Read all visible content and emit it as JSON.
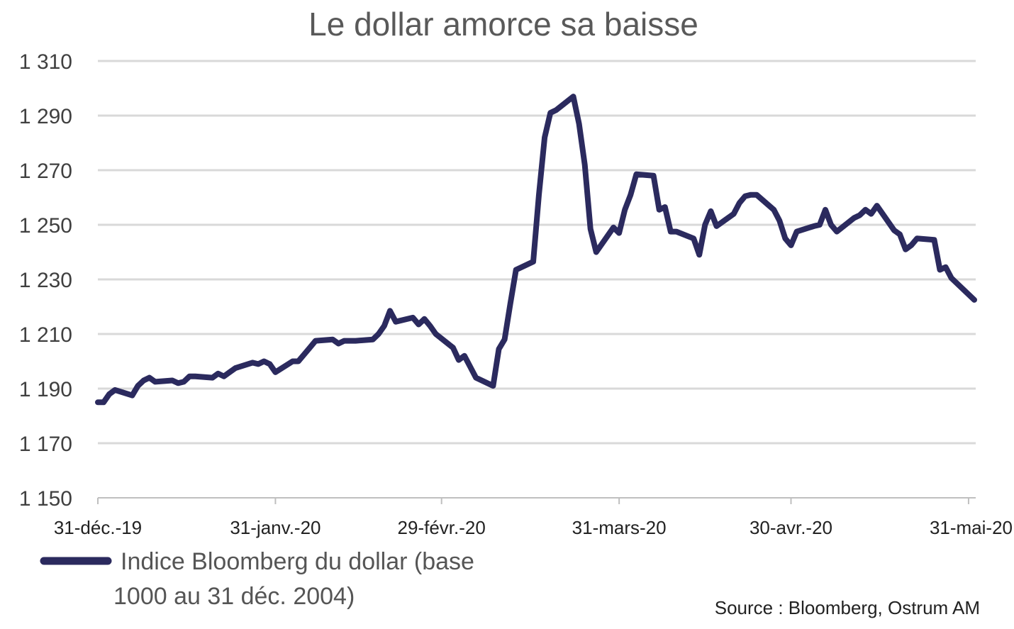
{
  "chart_data": {
    "type": "line",
    "title": "Le dollar amorce sa baisse",
    "xlabel": "",
    "ylabel": "",
    "ylim": [
      1150,
      1310
    ],
    "y_ticks": [
      1150,
      1170,
      1190,
      1210,
      1230,
      1250,
      1270,
      1290,
      1310
    ],
    "y_tick_labels": [
      "1 150",
      "1 170",
      "1 190",
      "1 210",
      "1 230",
      "1 250",
      "1 270",
      "1 290",
      "1 310"
    ],
    "x_range": [
      "2019-12-31",
      "2020-06-01"
    ],
    "x_ticks": [
      {
        "date": "2019-12-31",
        "label": "31-déc.-19"
      },
      {
        "date": "2020-01-31",
        "label": "31-janv.-20"
      },
      {
        "date": "2020-02-29",
        "label": "29-févr.-20"
      },
      {
        "date": "2020-03-31",
        "label": "31-mars-20"
      },
      {
        "date": "2020-04-30",
        "label": "30-avr.-20"
      },
      {
        "date": "2020-05-31",
        "label": "31-mai-20"
      }
    ],
    "grid": true,
    "legend_position": "bottom-left",
    "series": [
      {
        "name": "Indice Bloomberg du dollar (base 1000 au 31 déc. 2004)",
        "color": "#2b2a5e",
        "points": [
          [
            "2019-12-31",
            1185
          ],
          [
            "2020-01-01",
            1185
          ],
          [
            "2020-01-02",
            1188
          ],
          [
            "2020-01-03",
            1189.5
          ],
          [
            "2020-01-06",
            1187.5
          ],
          [
            "2020-01-07",
            1191
          ],
          [
            "2020-01-08",
            1193
          ],
          [
            "2020-01-09",
            1194
          ],
          [
            "2020-01-10",
            1192.5
          ],
          [
            "2020-01-13",
            1193
          ],
          [
            "2020-01-14",
            1192
          ],
          [
            "2020-01-15",
            1192.5
          ],
          [
            "2020-01-16",
            1194.5
          ],
          [
            "2020-01-17",
            1194.5
          ],
          [
            "2020-01-20",
            1194
          ],
          [
            "2020-01-21",
            1195.5
          ],
          [
            "2020-01-22",
            1194.5
          ],
          [
            "2020-01-23",
            1196
          ],
          [
            "2020-01-24",
            1197.5
          ],
          [
            "2020-01-27",
            1199.5
          ],
          [
            "2020-01-28",
            1199
          ],
          [
            "2020-01-29",
            1200
          ],
          [
            "2020-01-30",
            1199
          ],
          [
            "2020-01-31",
            1196
          ],
          [
            "2020-02-03",
            1200
          ],
          [
            "2020-02-04",
            1200
          ],
          [
            "2020-02-05",
            1202.5
          ],
          [
            "2020-02-06",
            1205
          ],
          [
            "2020-02-07",
            1207.5
          ],
          [
            "2020-02-10",
            1208
          ],
          [
            "2020-02-11",
            1206.5
          ],
          [
            "2020-02-12",
            1207.5
          ],
          [
            "2020-02-13",
            1207.5
          ],
          [
            "2020-02-14",
            1207.5
          ],
          [
            "2020-02-17",
            1208
          ],
          [
            "2020-02-18",
            1210
          ],
          [
            "2020-02-19",
            1213
          ],
          [
            "2020-02-20",
            1218.5
          ],
          [
            "2020-02-21",
            1214.5
          ],
          [
            "2020-02-24",
            1216
          ],
          [
            "2020-02-25",
            1213.5
          ],
          [
            "2020-02-26",
            1215.5
          ],
          [
            "2020-02-27",
            1213
          ],
          [
            "2020-02-28",
            1210
          ],
          [
            "2020-03-02",
            1205
          ],
          [
            "2020-03-03",
            1200.5
          ],
          [
            "2020-03-04",
            1202
          ],
          [
            "2020-03-05",
            1198
          ],
          [
            "2020-03-06",
            1194
          ],
          [
            "2020-03-09",
            1191
          ],
          [
            "2020-03-10",
            1204.5
          ],
          [
            "2020-03-11",
            1208
          ],
          [
            "2020-03-12",
            1221
          ],
          [
            "2020-03-13",
            1233.5
          ],
          [
            "2020-03-16",
            1236.5
          ],
          [
            "2020-03-17",
            1261
          ],
          [
            "2020-03-18",
            1282
          ],
          [
            "2020-03-19",
            1291
          ],
          [
            "2020-03-20",
            1292
          ],
          [
            "2020-03-23",
            1297
          ],
          [
            "2020-03-24",
            1287
          ],
          [
            "2020-03-25",
            1272
          ],
          [
            "2020-03-26",
            1248.5
          ],
          [
            "2020-03-27",
            1240
          ],
          [
            "2020-03-30",
            1249
          ],
          [
            "2020-03-31",
            1247
          ],
          [
            "2020-04-01",
            1255.5
          ],
          [
            "2020-04-02",
            1261
          ],
          [
            "2020-04-03",
            1268.5
          ],
          [
            "2020-04-06",
            1268
          ],
          [
            "2020-04-07",
            1255.5
          ],
          [
            "2020-04-08",
            1256.5
          ],
          [
            "2020-04-09",
            1247.5
          ],
          [
            "2020-04-10",
            1247.5
          ],
          [
            "2020-04-13",
            1245
          ],
          [
            "2020-04-14",
            1239
          ],
          [
            "2020-04-15",
            1250
          ],
          [
            "2020-04-16",
            1255
          ],
          [
            "2020-04-17",
            1249.5
          ],
          [
            "2020-04-20",
            1254
          ],
          [
            "2020-04-21",
            1258
          ],
          [
            "2020-04-22",
            1260.5
          ],
          [
            "2020-04-23",
            1261
          ],
          [
            "2020-04-24",
            1261
          ],
          [
            "2020-04-27",
            1255.5
          ],
          [
            "2020-04-28",
            1251.5
          ],
          [
            "2020-04-29",
            1245
          ],
          [
            "2020-04-30",
            1242.5
          ],
          [
            "2020-05-01",
            1247.5
          ],
          [
            "2020-05-04",
            1249.5
          ],
          [
            "2020-05-05",
            1250
          ],
          [
            "2020-05-06",
            1255.5
          ],
          [
            "2020-05-07",
            1250
          ],
          [
            "2020-05-08",
            1247.5
          ],
          [
            "2020-05-11",
            1252.5
          ],
          [
            "2020-05-12",
            1253.5
          ],
          [
            "2020-05-13",
            1255.5
          ],
          [
            "2020-05-14",
            1254
          ],
          [
            "2020-05-15",
            1257
          ],
          [
            "2020-05-18",
            1248
          ],
          [
            "2020-05-19",
            1246.5
          ],
          [
            "2020-05-20",
            1241
          ],
          [
            "2020-05-21",
            1242.5
          ],
          [
            "2020-05-22",
            1245
          ],
          [
            "2020-05-25",
            1244.5
          ],
          [
            "2020-05-26",
            1233.5
          ],
          [
            "2020-05-27",
            1234.5
          ],
          [
            "2020-05-28",
            1230.5
          ],
          [
            "2020-06-01",
            1222.5
          ]
        ]
      }
    ]
  },
  "legend": {
    "line1": "Indice Bloomberg du dollar (base",
    "line2": "1000 au 31 déc. 2004)"
  },
  "source": "Source : Bloomberg, Ostrum AM"
}
